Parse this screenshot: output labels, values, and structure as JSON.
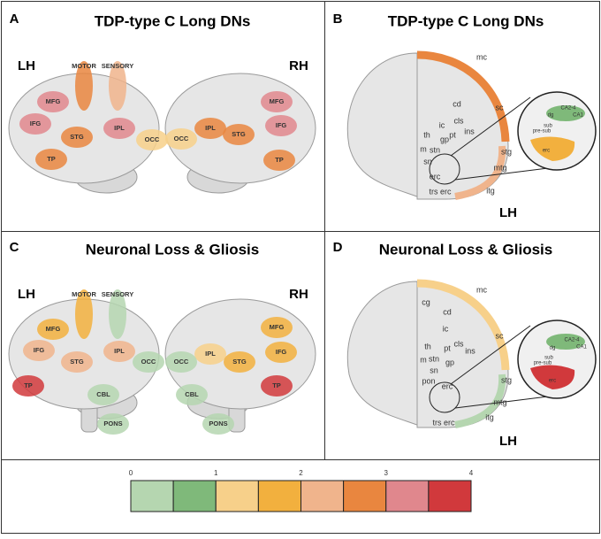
{
  "panels": [
    {
      "letter": "A",
      "title": "TDP-type C Long DNs",
      "hemispheres": [
        "LH",
        "RH"
      ],
      "left_brain": [
        "MOTOR",
        "SENSORY",
        "MFG",
        "IFG",
        "STG",
        "IPL",
        "TP",
        "OCC"
      ],
      "right_brain": [
        "MFG",
        "IPL",
        "STG",
        "IFG",
        "OCC",
        "TP"
      ]
    },
    {
      "letter": "B",
      "title": "TDP-type C Long DNs",
      "hemisphere": "LH",
      "regions": [
        "mc",
        "cd",
        "sc",
        "ic",
        "cls",
        "th",
        "pt",
        "gp",
        "ins",
        "stn",
        "m",
        "sn",
        "stg",
        "erc",
        "mtg",
        "trs erc",
        "itg"
      ],
      "inset": [
        "dg",
        "CA2-4",
        "CA1",
        "pre-sub",
        "sub",
        "erc"
      ]
    },
    {
      "letter": "C",
      "title": "Neuronal Loss & Gliosis",
      "hemispheres": [
        "LH",
        "RH"
      ],
      "left_brain": [
        "MOTOR",
        "SENSORY",
        "MFG",
        "IFG",
        "STG",
        "IPL",
        "OCC",
        "TP",
        "CBL",
        "PONS"
      ],
      "right_brain": [
        "IPL",
        "MFG",
        "STG",
        "IFG",
        "OCC",
        "CBL",
        "TP",
        "PONS"
      ]
    },
    {
      "letter": "D",
      "title": "Neuronal Loss & Gliosis",
      "hemisphere": "LH",
      "regions": [
        "mc",
        "cg",
        "cd",
        "sc",
        "ic",
        "cls",
        "th",
        "pt",
        "ins",
        "m",
        "stn",
        "gp",
        "sn",
        "stg",
        "pon",
        "erc",
        "mtg",
        "trs erc",
        "itg"
      ],
      "inset": [
        "dg",
        "CA2-4",
        "CA1",
        "pre-sub",
        "sub",
        "erc"
      ]
    }
  ],
  "legend": {
    "ticks": [
      0,
      1,
      2,
      3,
      4
    ]
  }
}
